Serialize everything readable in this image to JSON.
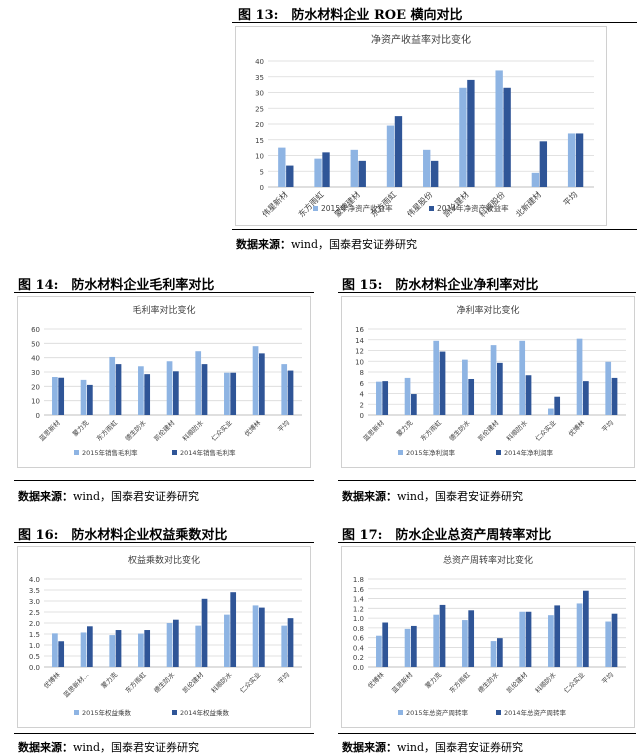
{
  "colors": {
    "light": "#8eb4e3",
    "dark": "#2f5597",
    "grid": "#d9d9d9",
    "axis": "#bfbfbf"
  },
  "figures": [
    {
      "id": "f13",
      "heading": "图 13:　防水材料企业 ROE 横向对比",
      "source_label": "数据来源：",
      "source_text": "wind，国泰君安证券研究",
      "chart_data": {
        "type": "bar",
        "title": "净资产收益率对比变化",
        "categories": [
          "伟星新材",
          "东方雨虹",
          "蒙牌建材",
          "东方雨虹",
          "伟星股份",
          "凯伦建材",
          "科顺股份",
          "北新建材",
          "平均"
        ],
        "categories_real": true,
        "series": [
          {
            "name": "2015年净资产收益率",
            "values": [
              12.5,
              9.0,
              11.8,
              19.5,
              11.8,
              31.5,
              37.0,
              4.5,
              17.0
            ]
          },
          {
            "name": "2014年净资产收益率",
            "values": [
              6.8,
              11.0,
              8.3,
              22.5,
              8.3,
              34.0,
              31.5,
              14.5,
              17.0
            ]
          }
        ],
        "ylim": [
          0,
          40
        ],
        "yticks": [
          0,
          5,
          10,
          15,
          20,
          25,
          30,
          35,
          40
        ]
      }
    },
    {
      "id": "f14",
      "heading": "图 14:　防水材料企业毛利率对比",
      "source_label": "数据来源：",
      "source_text": "wind，国泰君安证券研究",
      "chart_data": {
        "type": "bar",
        "title": "毛利率对比变化",
        "categories": [
          "蓝思新材",
          "蒙力克",
          "东方雨虹",
          "德生防水",
          "凯伦建材",
          "科顺防水",
          "仁众实业",
          "优博林",
          "平均"
        ],
        "series": [
          {
            "name": "2015年销售毛利率",
            "values": [
              26.5,
              24.5,
              40.5,
              34.0,
              37.5,
              44.5,
              29.5,
              48.0,
              35.5
            ]
          },
          {
            "name": "2014年销售毛利率",
            "values": [
              26.0,
              21.0,
              35.5,
              28.5,
              30.5,
              35.5,
              29.5,
              43.0,
              31.0
            ]
          }
        ],
        "ylim": [
          0,
          60
        ],
        "yticks": [
          0,
          10,
          20,
          30,
          40,
          50,
          60
        ]
      }
    },
    {
      "id": "f15",
      "heading": "图 15:　防水材料企业净利率对比",
      "source_label": "数据来源：",
      "source_text": "wind，国泰君安证券研究",
      "chart_data": {
        "type": "bar",
        "title": "净利率对比变化",
        "categories": [
          "蓝思新材",
          "蒙力克",
          "东方雨虹",
          "德生防水",
          "凯伦建材",
          "科顺防水",
          "仁众实业",
          "优博林",
          "平均"
        ],
        "series": [
          {
            "name": "2015年净利润率",
            "values": [
              6.2,
              6.9,
              13.8,
              10.3,
              13.0,
              13.8,
              1.2,
              14.2,
              9.9
            ]
          },
          {
            "name": "2014年净利润率",
            "values": [
              6.3,
              3.9,
              11.8,
              6.7,
              9.7,
              7.4,
              3.4,
              6.3,
              6.9
            ]
          }
        ],
        "ylim": [
          0,
          16
        ],
        "yticks": [
          0,
          2,
          4,
          6,
          8,
          10,
          12,
          14,
          16
        ]
      }
    },
    {
      "id": "f16",
      "heading": "图 16:　防水材料企业权益乘数对比",
      "source_label": "数据来源：",
      "source_text": "wind，国泰君安证券研究",
      "chart_data": {
        "type": "bar",
        "title": "权益乘数对比变化",
        "categories": [
          "优博林",
          "蓝思新材...",
          "蒙力克",
          "东方雨虹",
          "德生防水",
          "凯伦建材",
          "科顺防水",
          "仁众实业",
          "平均"
        ],
        "series": [
          {
            "name": "2015年权益乘数",
            "values": [
              1.53,
              1.57,
              1.45,
              1.52,
              2.0,
              1.88,
              2.38,
              2.8,
              1.88
            ]
          },
          {
            "name": "2014年权益乘数",
            "values": [
              1.17,
              1.85,
              1.68,
              1.68,
              2.15,
              3.1,
              3.4,
              2.7,
              2.22
            ]
          }
        ],
        "ylim": [
          0,
          4
        ],
        "yticks": [
          0.0,
          0.5,
          1.0,
          1.5,
          2.0,
          2.5,
          3.0,
          3.5,
          4.0
        ]
      }
    },
    {
      "id": "f17",
      "heading": "图 17:　防水企业总资产周转率对比",
      "source_label": "数据来源：",
      "source_text": "wind，国泰君安证券研究",
      "chart_data": {
        "type": "bar",
        "title": "总资产周转率对比变化",
        "categories": [
          "优博林",
          "蓝思新材",
          "蒙力克",
          "东方雨虹",
          "德生防水",
          "凯伦建材",
          "科顺防水",
          "仁众实业",
          "平均"
        ],
        "series": [
          {
            "name": "2015年总资产周转率",
            "values": [
              0.64,
              0.78,
              1.07,
              0.96,
              0.53,
              1.13,
              1.06,
              1.3,
              0.93
            ]
          },
          {
            "name": "2014年总资产周转率",
            "values": [
              0.91,
              0.84,
              1.27,
              1.16,
              0.59,
              1.13,
              1.26,
              1.56,
              1.09
            ]
          }
        ],
        "ylim": [
          0,
          1.8
        ],
        "yticks": [
          0.0,
          0.2,
          0.4,
          0.6,
          0.8,
          1.0,
          1.2,
          1.4,
          1.6,
          1.8
        ]
      }
    }
  ]
}
